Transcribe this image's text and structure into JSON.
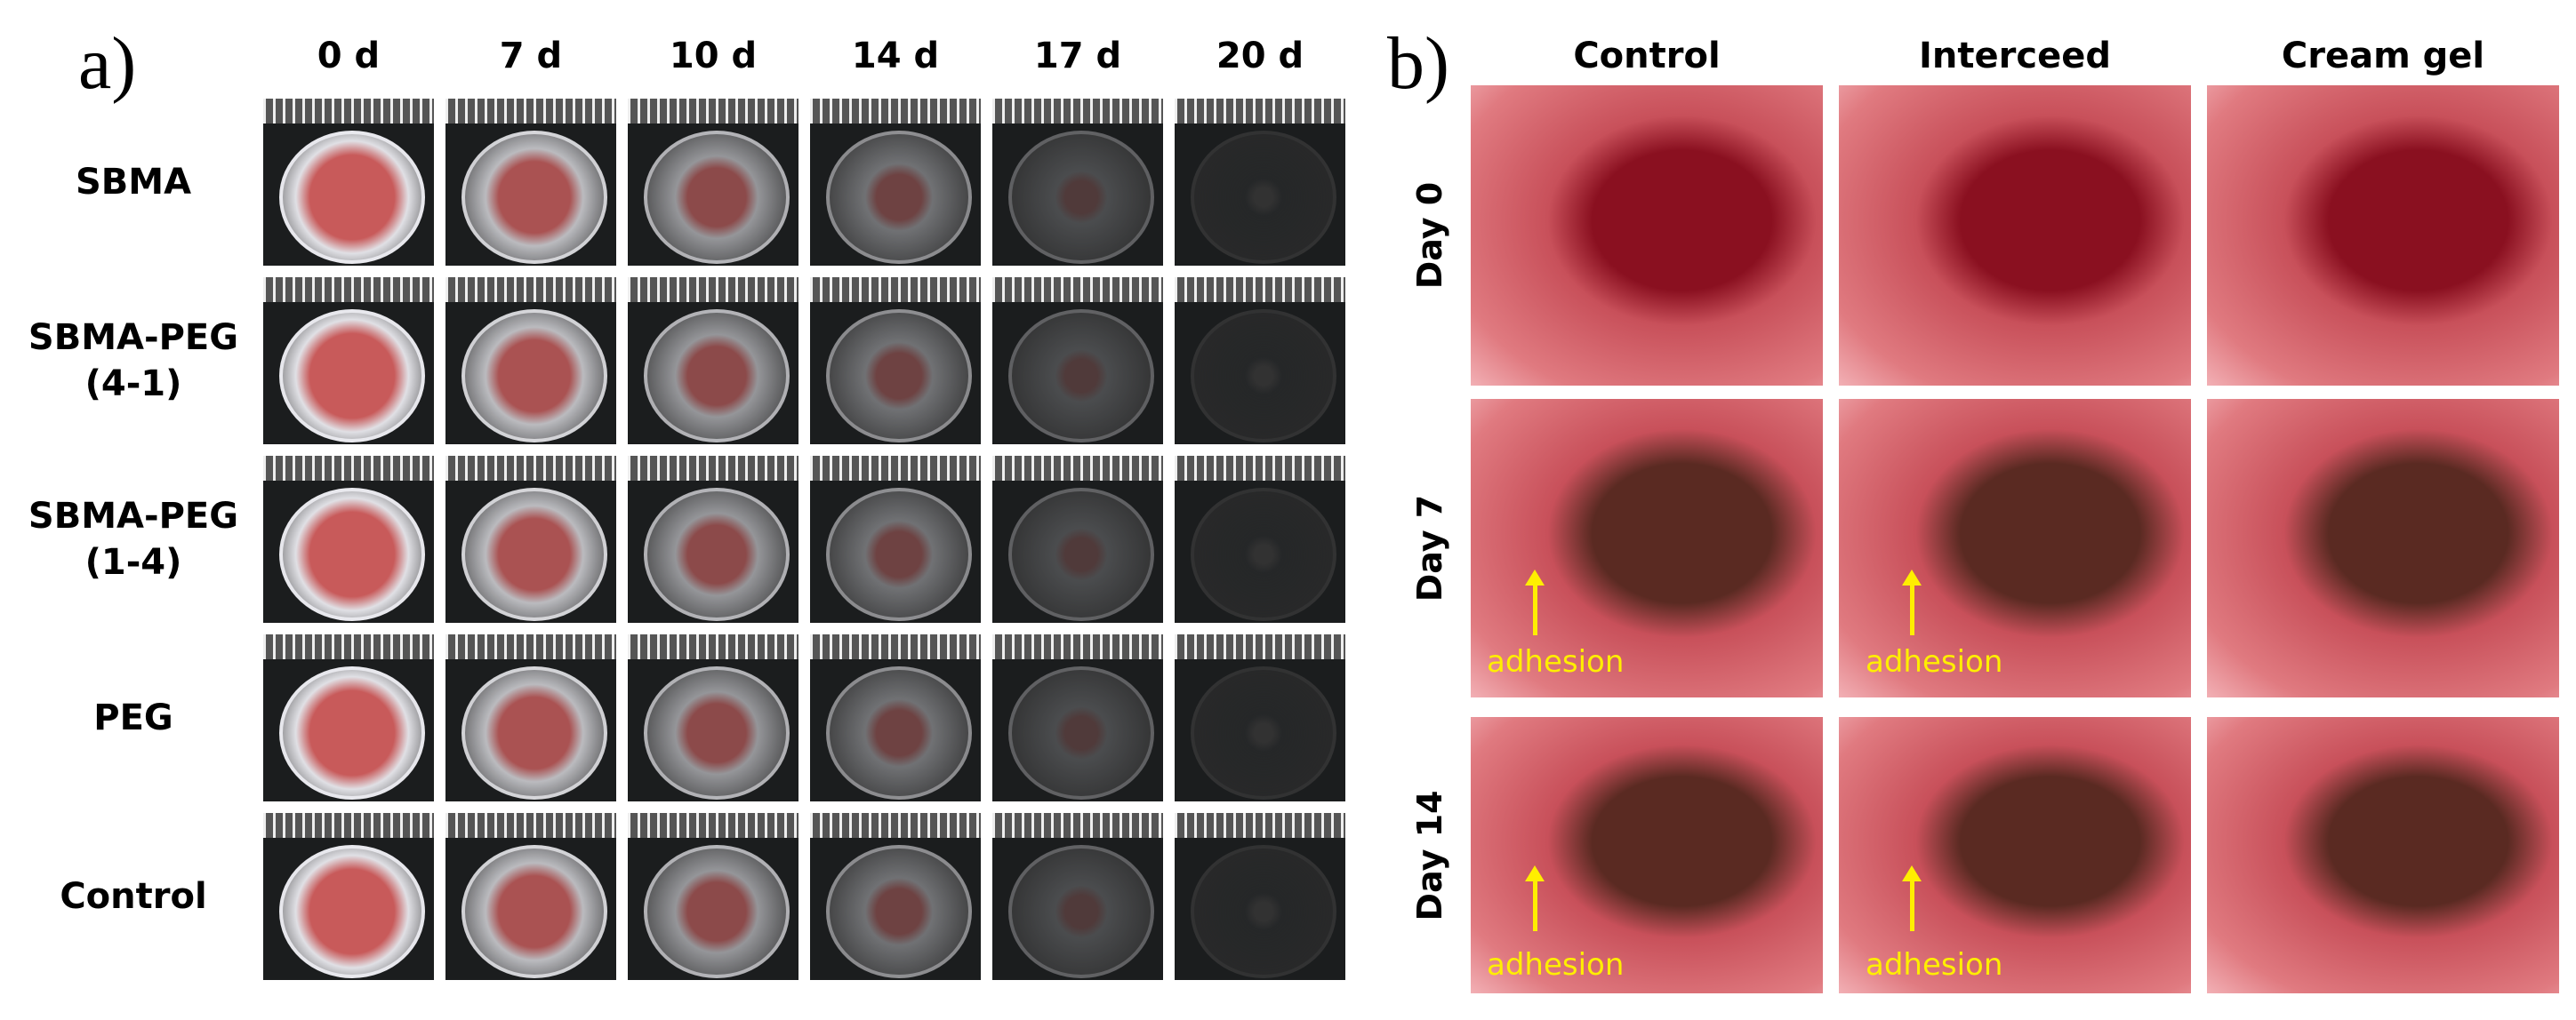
{
  "panel_a": {
    "label": "a)",
    "columns": [
      "0 d",
      "7 d",
      "10 d",
      "14 d",
      "17 d",
      "20 d"
    ],
    "rows": [
      [
        "SBMA"
      ],
      [
        "SBMA-PEG",
        "(4-1)"
      ],
      [
        "SBMA-PEG",
        "(1-4)"
      ],
      [
        "PEG"
      ],
      [
        "Control"
      ]
    ]
  },
  "panel_b": {
    "label": "b)",
    "columns": [
      "Control",
      "Interceed",
      "Cream gel"
    ],
    "rows": [
      {
        "label": "Day 0"
      },
      {
        "label": "Day 7",
        "annotations": {
          "Control": "adhesion",
          "Interceed": "adhesion"
        }
      },
      {
        "label": "Day 14",
        "annotations": {
          "Control": "adhesion",
          "Interceed": "adhesion"
        }
      }
    ]
  }
}
